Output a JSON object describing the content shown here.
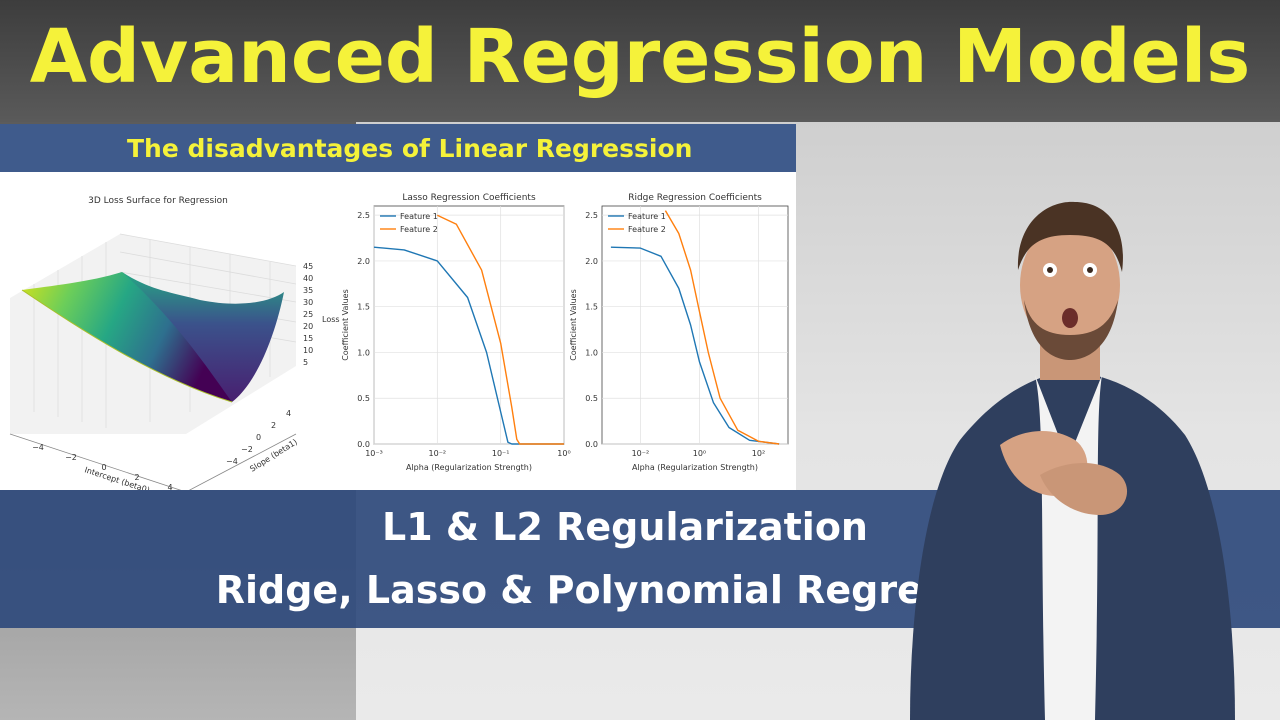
{
  "header": {
    "title": "Advanced Regression Models"
  },
  "panel": {
    "heading": "The disadvantages of Linear Regression"
  },
  "band": {
    "line1": "L1 & L2 Regularization",
    "line2": "Ridge, Lasso & Polynomial Regression"
  },
  "colors": {
    "title_yellow": "#f5f23a",
    "band_blue": "#2f4a7c",
    "feature1": "#1f77b4",
    "feature2": "#ff7f0e"
  },
  "chart_data": [
    {
      "type": "surface",
      "title": "3D Loss Surface for Regression",
      "xlabel": "Intercept (beta0)",
      "ylabel": "Slope (beta1)",
      "zlabel": "Loss",
      "x_ticks": [
        "−4",
        "−2",
        "0",
        "2",
        "4"
      ],
      "y_ticks": [
        "−4",
        "−2",
        "0",
        "2",
        "4"
      ],
      "z_ticks": [
        "5",
        "10",
        "15",
        "20",
        "25",
        "30",
        "35",
        "40",
        "45"
      ],
      "colormap": "viridis"
    },
    {
      "type": "line",
      "title": "Lasso Regression Coefficients",
      "xlabel": "Alpha (Regularization Strength)",
      "ylabel": "Coefficient Values",
      "x_scale": "log",
      "x_ticks": [
        "10⁻³",
        "10⁻²",
        "10⁻¹",
        "10⁰"
      ],
      "y_ticks": [
        "0.0",
        "0.5",
        "1.0",
        "1.5",
        "2.0",
        "2.5"
      ],
      "xlim": [
        0.001,
        1
      ],
      "ylim": [
        0,
        2.6
      ],
      "legend": "top-left",
      "series": [
        {
          "name": "Feature 1",
          "x": [
            0.001,
            0.003,
            0.01,
            0.03,
            0.06,
            0.1,
            0.13,
            0.15,
            1
          ],
          "y": [
            2.15,
            2.12,
            2.0,
            1.6,
            1.0,
            0.35,
            0.02,
            0.0,
            0.0
          ]
        },
        {
          "name": "Feature 2",
          "x": [
            0.01,
            0.02,
            0.05,
            0.1,
            0.15,
            0.18,
            0.2,
            1
          ],
          "y": [
            2.5,
            2.4,
            1.9,
            1.1,
            0.4,
            0.05,
            0.0,
            0.0
          ]
        }
      ]
    },
    {
      "type": "line",
      "title": "Ridge Regression Coefficients",
      "xlabel": "Alpha (Regularization Strength)",
      "ylabel": "Coefficient Values",
      "x_scale": "log",
      "x_ticks": [
        "10⁻²",
        "10⁰",
        "10²"
      ],
      "y_ticks": [
        "0.0",
        "0.5",
        "1.0",
        "1.5",
        "2.0",
        "2.5"
      ],
      "xlim": [
        0.0005,
        1000
      ],
      "ylim": [
        0,
        2.6
      ],
      "legend": "top-left",
      "series": [
        {
          "name": "Feature 1",
          "x": [
            0.001,
            0.01,
            0.05,
            0.2,
            0.5,
            1,
            3,
            10,
            50,
            500
          ],
          "y": [
            2.15,
            2.14,
            2.05,
            1.7,
            1.3,
            0.9,
            0.45,
            0.18,
            0.04,
            0.0
          ]
        },
        {
          "name": "Feature 2",
          "x": [
            0.07,
            0.2,
            0.5,
            1,
            2,
            5,
            20,
            100,
            500
          ],
          "y": [
            2.55,
            2.3,
            1.9,
            1.45,
            1.0,
            0.5,
            0.15,
            0.03,
            0.0
          ]
        }
      ]
    }
  ]
}
